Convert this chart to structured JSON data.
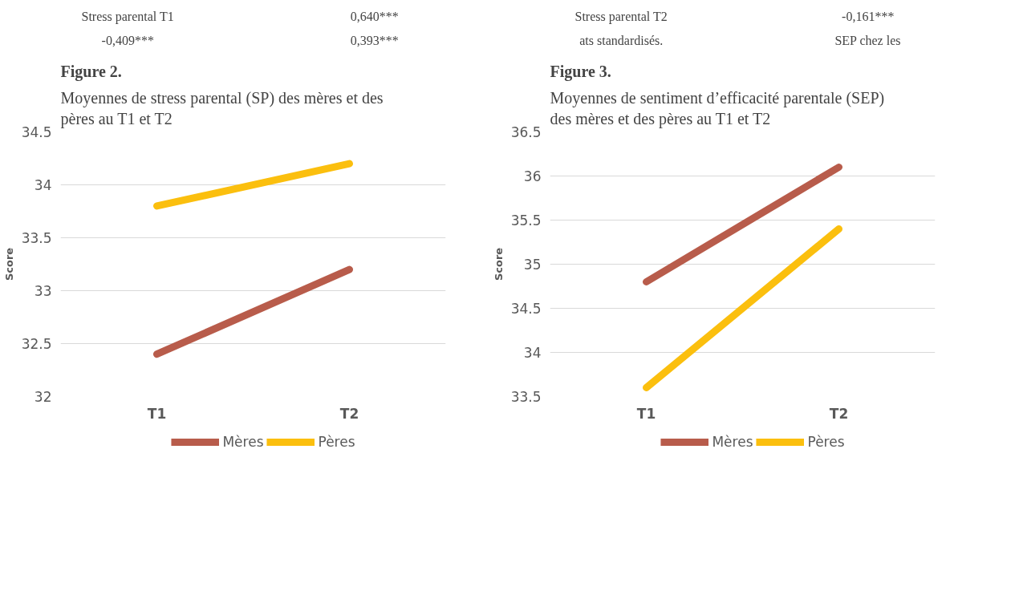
{
  "chart_data": [
    {
      "type": "other",
      "annotations": [
        "Stress parental T1",
        "0,640***",
        "Stress parental T2",
        "-0,161***",
        "-0,409***",
        "0,393***",
        "ats standardisés.",
        "SEP chez les"
      ]
    },
    {
      "type": "line",
      "title": "Figure 2.",
      "subtitle": "Moyennes de stress parental (SP) des mères et des pères au T1 et T2",
      "ylabel": "Score",
      "categories": [
        "T1",
        "T2"
      ],
      "series": [
        {
          "name": "Mères",
          "color": "#b85c4b",
          "values": [
            32.4,
            33.2
          ]
        },
        {
          "name": "Pères",
          "color": "#fbbf0e",
          "values": [
            33.8,
            34.2
          ]
        }
      ],
      "ylim": [
        32,
        34.5
      ],
      "yticks": [
        32,
        32.5,
        33,
        33.5,
        34,
        34.5
      ],
      "grid": "y",
      "legend": "bottom",
      "marker": "none",
      "line_style": "solid"
    },
    {
      "type": "line",
      "title": "Figure 3.",
      "subtitle": "Moyennes de sentiment d’efficacité parentale (SEP) des mères et des pères au T1 et T2",
      "ylabel": "Score",
      "categories": [
        "T1",
        "T2"
      ],
      "series": [
        {
          "name": "Mères",
          "color": "#b85c4b",
          "values": [
            34.8,
            36.1
          ]
        },
        {
          "name": "Pères",
          "color": "#fbbf0e",
          "values": [
            33.6,
            35.4
          ]
        }
      ],
      "ylim": [
        33.5,
        36.5
      ],
      "yticks": [
        33.5,
        34,
        34.5,
        35,
        35.5,
        36,
        36.5
      ],
      "grid": "y",
      "legend": "bottom",
      "marker": "none",
      "line_style": "solid"
    }
  ]
}
